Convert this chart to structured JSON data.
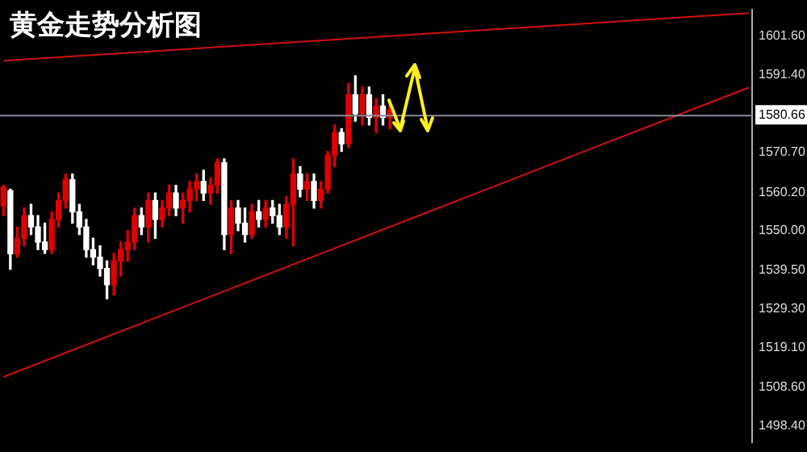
{
  "chart_data": {
    "type": "candlestick",
    "title": "黄金走势分析图",
    "categories": [
      null,
      null,
      null,
      null,
      null,
      null,
      null,
      null,
      null,
      null,
      null,
      null,
      null,
      null,
      null,
      null,
      null,
      null,
      null,
      null,
      null,
      null,
      null,
      null,
      null,
      null,
      null,
      null,
      null,
      null,
      null,
      null,
      null,
      null,
      null,
      null,
      null,
      null,
      null,
      null,
      null,
      null,
      null,
      null,
      null,
      null,
      null,
      null,
      null,
      null,
      null,
      null,
      null,
      null,
      null,
      null,
      null,
      null,
      null,
      null,
      null,
      null,
      null,
      null,
      null,
      null,
      null,
      null,
      null,
      null,
      null,
      null,
      null,
      null,
      null,
      null,
      null,
      null,
      null,
      null,
      null,
      null,
      null,
      null,
      null,
      null,
      null,
      null,
      null,
      null,
      null,
      null,
      null,
      null,
      null,
      null,
      null,
      null,
      null,
      null,
      null,
      null,
      null,
      null,
      null,
      null,
      null,
      null,
      null
    ],
    "ohlc": [
      [
        1556.6,
        1562,
        1554,
        1561.5
      ],
      [
        1560.6,
        1561,
        1539.8,
        1543.9
      ],
      [
        1543.9,
        1551,
        1543,
        1548
      ],
      [
        1548,
        1556,
        1546,
        1554
      ],
      [
        1554,
        1557,
        1549,
        1551
      ],
      [
        1551,
        1554,
        1545,
        1547
      ],
      [
        1547,
        1552,
        1544,
        1545
      ],
      [
        1545,
        1555,
        1544,
        1553
      ],
      [
        1553,
        1560,
        1551,
        1558
      ],
      [
        1558,
        1565,
        1556,
        1563.5
      ],
      [
        1563.5,
        1565,
        1552,
        1555
      ],
      [
        1555,
        1557,
        1549,
        1551
      ],
      [
        1551,
        1553,
        1543,
        1545
      ],
      [
        1545,
        1548,
        1541,
        1543
      ],
      [
        1543,
        1546,
        1538,
        1540
      ],
      [
        1540,
        1542,
        1532,
        1535.7
      ],
      [
        1535.7,
        1544,
        1533,
        1542
      ],
      [
        1542,
        1547,
        1538,
        1545
      ],
      [
        1545,
        1550,
        1542,
        1547
      ],
      [
        1547,
        1556,
        1545,
        1554
      ],
      [
        1554,
        1556,
        1549,
        1551
      ],
      [
        1551,
        1560,
        1547,
        1558
      ],
      [
        1558,
        1560,
        1548,
        1553
      ],
      [
        1553,
        1558,
        1551,
        1556
      ],
      [
        1556,
        1562,
        1554,
        1560
      ],
      [
        1560,
        1562,
        1554,
        1556
      ],
      [
        1556,
        1560,
        1552,
        1558
      ],
      [
        1558,
        1563,
        1555,
        1561
      ],
      [
        1561,
        1565,
        1558,
        1563
      ],
      [
        1563,
        1566,
        1558,
        1560
      ],
      [
        1560,
        1564,
        1557,
        1562
      ],
      [
        1562,
        1569,
        1560,
        1568
      ],
      [
        1568,
        1569,
        1545,
        1549
      ],
      [
        1549,
        1558,
        1544,
        1556
      ],
      [
        1556,
        1558,
        1550,
        1552
      ],
      [
        1552,
        1556,
        1547,
        1549
      ],
      [
        1549,
        1557,
        1548,
        1555
      ],
      [
        1555,
        1558,
        1551,
        1553
      ],
      [
        1553,
        1558,
        1551,
        1556
      ],
      [
        1556,
        1558,
        1552,
        1554
      ],
      [
        1554,
        1557,
        1549,
        1551
      ],
      [
        1551,
        1559,
        1548,
        1557
      ],
      [
        1557,
        1569,
        1546,
        1565
      ],
      [
        1565,
        1567,
        1559,
        1561
      ],
      [
        1561,
        1565,
        1558,
        1563
      ],
      [
        1563,
        1565,
        1556,
        1558
      ],
      [
        1558,
        1563,
        1556,
        1561
      ],
      [
        1561,
        1571,
        1560,
        1570
      ],
      [
        1570,
        1578,
        1567,
        1576
      ],
      [
        1576,
        1577,
        1571,
        1573
      ],
      [
        1573,
        1589,
        1572,
        1586
      ],
      [
        1586,
        1591,
        1579,
        1581
      ],
      [
        1581,
        1588,
        1578,
        1586
      ],
      [
        1586,
        1588,
        1578,
        1580
      ],
      [
        1580,
        1585,
        1576,
        1583
      ],
      [
        1583,
        1586,
        1578,
        1580
      ],
      [
        1580,
        1584,
        1577,
        1582
      ],
      null,
      null,
      null,
      null,
      null,
      null,
      null,
      null,
      null,
      null,
      null,
      null,
      null,
      null,
      null,
      null,
      null,
      null,
      null,
      null,
      null,
      null,
      null,
      null,
      null,
      null,
      null,
      null,
      null,
      null,
      null,
      null,
      null,
      null,
      null,
      null,
      null,
      null,
      null,
      null,
      null,
      null,
      null,
      null,
      null,
      null,
      null,
      null,
      null,
      null,
      null,
      null
    ],
    "colors": [
      "#e00000",
      "#ffffff",
      "#e00000",
      "#e00000",
      "#ffffff",
      "#ffffff",
      "#ffffff",
      "#e00000",
      "#e00000",
      "#e00000",
      "#ffffff",
      "#ffffff",
      "#ffffff",
      "#ffffff",
      "#ffffff",
      "#ffffff",
      "#e00000",
      "#e00000",
      "#e00000",
      "#e00000",
      "#ffffff",
      "#e00000",
      "#ffffff",
      "#e00000",
      "#e00000",
      "#ffffff",
      "#e00000",
      "#e00000",
      "#e00000",
      "#ffffff",
      "#e00000",
      "#e00000",
      "#ffffff",
      "#e00000",
      "#ffffff",
      "#ffffff",
      "#e00000",
      "#ffffff",
      "#e00000",
      "#ffffff",
      "#ffffff",
      "#e00000",
      "#e00000",
      "#ffffff",
      "#e00000",
      "#ffffff",
      "#e00000",
      "#e00000",
      "#e00000",
      "#ffffff",
      "#e00000",
      "#ffffff",
      "#e00000",
      "#ffffff",
      "#e00000",
      "#ffffff",
      "#e00000",
      null,
      null,
      null,
      null,
      null,
      null,
      null,
      null,
      null,
      null,
      null,
      null,
      null,
      null,
      null,
      null,
      null,
      null,
      null,
      null,
      null,
      null,
      null,
      null,
      null,
      null,
      null,
      null,
      null,
      null,
      null,
      null,
      null,
      null,
      null,
      null,
      null,
      null,
      null,
      null,
      null,
      null,
      null,
      null,
      null,
      null,
      null,
      null,
      null,
      null,
      null,
      null
    ],
    "series": [
      {
        "type": "line",
        "color": "#d01010",
        "values": [
          1595.0,
          null,
          null,
          null,
          null,
          null,
          null,
          null,
          null,
          null,
          null,
          null,
          null,
          null,
          null,
          null,
          null,
          null,
          null,
          null,
          null,
          null,
          null,
          null,
          null,
          null,
          null,
          null,
          null,
          null,
          null,
          null,
          null,
          null,
          null,
          null,
          null,
          null,
          null,
          null,
          null,
          null,
          null,
          null,
          null,
          null,
          null,
          null,
          null,
          null,
          null,
          null,
          null,
          null,
          null,
          null,
          null,
          null,
          null,
          null,
          null,
          null,
          null,
          null,
          null,
          null,
          null,
          null,
          null,
          null,
          null,
          null,
          null,
          null,
          null,
          null,
          null,
          null,
          null,
          null,
          null,
          null,
          null,
          null,
          null,
          null,
          null,
          null,
          null,
          null,
          null,
          null,
          null,
          null,
          null,
          null,
          null,
          null,
          null,
          null,
          null,
          null,
          null,
          null,
          null,
          null,
          null,
          null,
          1607.6
        ]
      },
      {
        "type": "line",
        "color": "#d01010",
        "values": [
          1511.3,
          null,
          null,
          null,
          null,
          null,
          null,
          null,
          null,
          null,
          null,
          null,
          null,
          null,
          null,
          null,
          null,
          null,
          null,
          null,
          null,
          null,
          null,
          null,
          null,
          null,
          null,
          null,
          null,
          null,
          null,
          null,
          null,
          null,
          null,
          null,
          null,
          null,
          null,
          null,
          null,
          null,
          null,
          null,
          null,
          null,
          null,
          null,
          null,
          null,
          null,
          null,
          null,
          null,
          null,
          null,
          null,
          null,
          null,
          null,
          null,
          null,
          null,
          null,
          null,
          null,
          null,
          null,
          null,
          null,
          null,
          null,
          null,
          null,
          null,
          null,
          null,
          null,
          null,
          null,
          null,
          null,
          null,
          null,
          null,
          null,
          null,
          null,
          null,
          null,
          null,
          null,
          null,
          null,
          null,
          null,
          null,
          null,
          null,
          null,
          null,
          null,
          null,
          null,
          null,
          null,
          null,
          null,
          1587.9
        ]
      }
    ],
    "ref_lines": [
      {
        "axis": "y",
        "value": 1580.66,
        "label": "1580.66",
        "color": "#8a8a9a"
      }
    ],
    "ylim": [
      1493.9,
      1608.6
    ],
    "yticks": [
      {
        "value": 1601.6,
        "label": "1601.60"
      },
      {
        "value": 1591.4,
        "label": "1591.40"
      },
      {
        "value": 1570.7,
        "label": "1570.70"
      },
      {
        "value": 1560.2,
        "label": "1560.20"
      },
      {
        "value": 1550,
        "label": "1550.00"
      },
      {
        "value": 1539.5,
        "label": "1539.50"
      },
      {
        "value": 1529.3,
        "label": "1529.30"
      },
      {
        "value": 1519.1,
        "label": "1519.10"
      },
      {
        "value": 1508.6,
        "label": "1508.60"
      },
      {
        "value": 1498.4,
        "label": "1498.40"
      }
    ],
    "tick_labels": "y",
    "grid": false,
    "legend": false
  }
}
